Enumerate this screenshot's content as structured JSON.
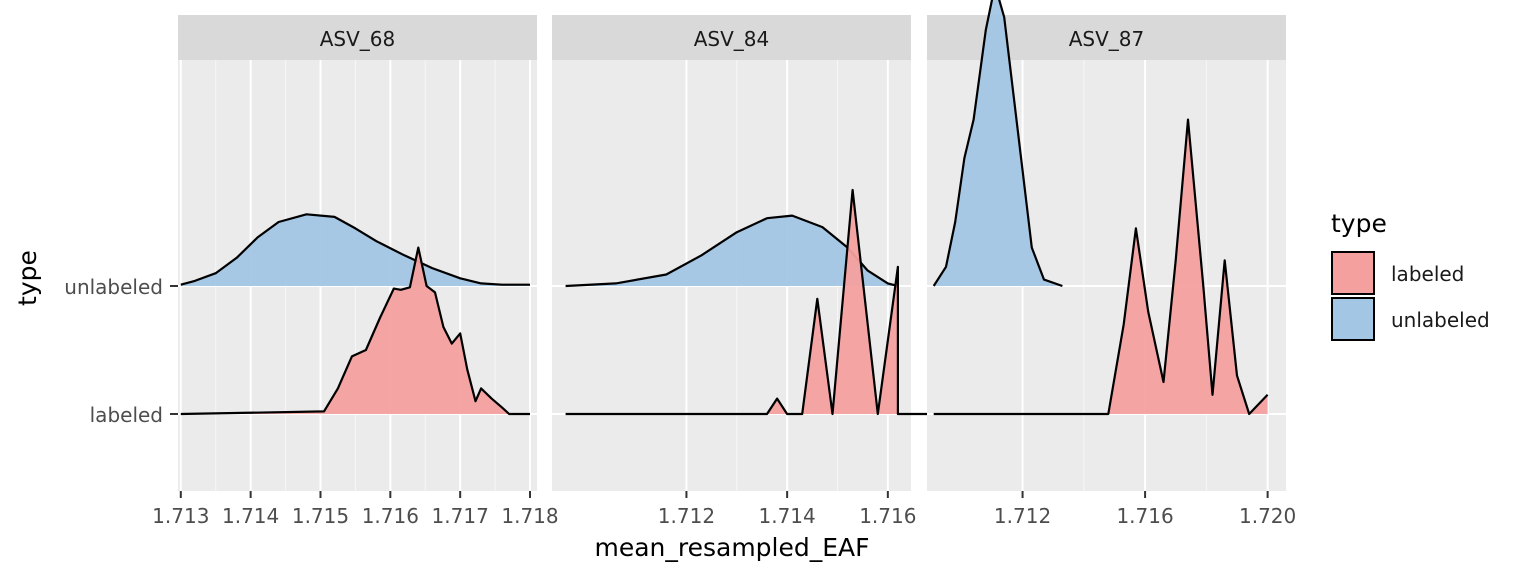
{
  "chart_data": {
    "type": "ridgeline",
    "xlabel": "mean_resampled_EAF",
    "ylabel": "type",
    "y_categories": [
      "labeled",
      "unlabeled"
    ],
    "legend": {
      "title": "type",
      "placement": "right",
      "entries": [
        {
          "label": "labeled",
          "color": "#F8766D"
        },
        {
          "label": "unlabeled",
          "color": "#619CFF"
        }
      ]
    },
    "colors": {
      "labeled": "#F4A09E",
      "unlabeled": "#A2C6E4",
      "panel_bg": "#EBEBEB",
      "strip_bg": "#D9D9D9"
    },
    "panels": [
      {
        "title": "ASV_68",
        "xlim": [
          1.71296,
          1.7181
        ],
        "x_ticks": [
          1.713,
          1.714,
          1.715,
          1.716,
          1.717,
          1.718
        ],
        "x_tick_labels": [
          "1.713",
          "1.714",
          "1.715",
          "1.716",
          "1.717",
          "1.718"
        ],
        "series": [
          {
            "name": "unlabeled",
            "x": [
              1.713,
              1.7132,
              1.7135,
              1.7138,
              1.7141,
              1.7144,
              1.7148,
              1.7152,
              1.7155,
              1.7158,
              1.7162,
              1.7166,
              1.717,
              1.7173,
              1.7176,
              1.7178,
              1.718
            ],
            "y": [
              0.01,
              0.04,
              0.1,
              0.22,
              0.38,
              0.5,
              0.56,
              0.54,
              0.45,
              0.35,
              0.24,
              0.14,
              0.06,
              0.02,
              0.01,
              0.01,
              0.01
            ]
          },
          {
            "name": "labeled",
            "x": [
              1.713,
              1.71505,
              1.71525,
              1.71545,
              1.71565,
              1.71585,
              1.71605,
              1.71615,
              1.71628,
              1.7164,
              1.71652,
              1.71664,
              1.71676,
              1.71688,
              1.717,
              1.7171,
              1.71722,
              1.7173,
              1.71745,
              1.7176,
              1.7177,
              1.718
            ],
            "y": [
              0.0,
              0.02,
              0.2,
              0.45,
              0.5,
              0.75,
              0.98,
              0.97,
              0.99,
              1.3,
              1.0,
              0.95,
              0.68,
              0.55,
              0.63,
              0.35,
              0.1,
              0.2,
              0.12,
              0.05,
              0.0,
              0.0
            ]
          }
        ]
      },
      {
        "title": "ASV_84",
        "xlim": [
          1.70933,
          1.71646
        ],
        "x_ticks": [
          1.712,
          1.714,
          1.716
        ],
        "x_tick_labels": [
          "1.712",
          "1.714",
          "1.716"
        ],
        "series": [
          {
            "name": "unlabeled",
            "x": [
              1.7096,
              1.7106,
              1.7116,
              1.7123,
              1.713,
              1.7136,
              1.7141,
              1.7147,
              1.7152,
              1.7156,
              1.716,
              1.7162
            ],
            "y": [
              0.0,
              0.02,
              0.09,
              0.24,
              0.42,
              0.53,
              0.55,
              0.46,
              0.3,
              0.12,
              0.02,
              0.0
            ]
          },
          {
            "name": "labeled",
            "x": [
              1.7096,
              1.7136,
              1.7138,
              1.714,
              1.7143,
              1.7146,
              1.7149,
              1.7153,
              1.7158,
              1.7162,
              1.7165,
              1.7168,
              1.7172,
              1.7176,
              1.7162
            ],
            "y": [
              0.0,
              0.0,
              0.12,
              0.0,
              0.0,
              0.9,
              0.0,
              1.75,
              0.0,
              1.15,
              0.0,
              0.0,
              0.0,
              0.0,
              0.0
            ]
          }
        ]
      },
      {
        "title": "ASV_87",
        "xlim": [
          1.70888,
          1.7206
        ],
        "x_ticks": [
          1.712,
          1.716,
          1.72
        ],
        "x_tick_labels": [
          "1.712",
          "1.716",
          "1.720"
        ],
        "series": [
          {
            "name": "unlabeled",
            "x": [
              1.7091,
              1.7095,
              1.7098,
              1.7101,
              1.7104,
              1.7108,
              1.7111,
              1.7114,
              1.7117,
              1.712,
              1.7123,
              1.7127,
              1.7133
            ],
            "y": [
              0.0,
              0.15,
              0.5,
              1.0,
              1.3,
              2.0,
              2.35,
              2.1,
              1.5,
              0.9,
              0.3,
              0.05,
              0.0
            ]
          },
          {
            "name": "labeled",
            "x": [
              1.7091,
              1.7148,
              1.7153,
              1.7157,
              1.7161,
              1.7166,
              1.717,
              1.7174,
              1.7179,
              1.7182,
              1.7186,
              1.719,
              1.7194,
              1.72
            ],
            "y": [
              0.0,
              0.0,
              0.7,
              1.45,
              0.8,
              0.25,
              1.2,
              2.3,
              1.0,
              0.15,
              1.2,
              0.3,
              0.0,
              0.15
            ]
          }
        ]
      }
    ]
  }
}
